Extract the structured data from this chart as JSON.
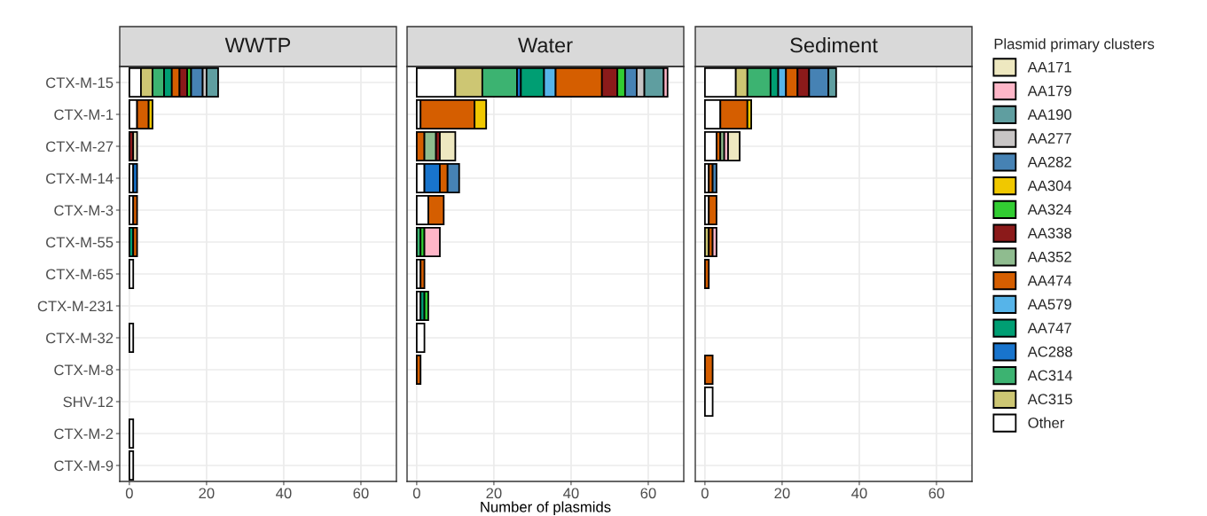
{
  "chart_data": [
    {
      "type": "bar",
      "orientation": "horizontal",
      "stacked": true,
      "title": "WWTP",
      "grid": true,
      "categories": [
        "CTX-M-15",
        "CTX-M-1",
        "CTX-M-27",
        "CTX-M-14",
        "CTX-M-3",
        "CTX-M-55",
        "CTX-M-65",
        "CTX-M-231",
        "CTX-M-32",
        "CTX-M-8",
        "SHV-12",
        "CTX-M-2",
        "CTX-M-9"
      ],
      "xlim": [
        -2.5,
        69.2
      ],
      "xticks": [
        0,
        20,
        40,
        60
      ],
      "series": [
        {
          "color": "#ffffff",
          "values": [
            3,
            2,
            null,
            1,
            1,
            null,
            1,
            null,
            1,
            null,
            null,
            1,
            1
          ]
        },
        {
          "color": "#cdc673",
          "values": [
            3,
            null,
            null,
            null,
            null,
            null,
            null,
            null,
            null,
            null,
            null,
            null,
            null
          ]
        },
        {
          "color": "#3cb371",
          "values": [
            3,
            null,
            null,
            null,
            null,
            null,
            null,
            null,
            null,
            null,
            null,
            null,
            null
          ]
        },
        {
          "color": "#1874cd",
          "values": [
            null,
            null,
            null,
            1,
            null,
            null,
            null,
            null,
            null,
            null,
            null,
            null,
            null
          ]
        },
        {
          "color": "#009e73",
          "values": [
            2,
            null,
            null,
            null,
            null,
            1,
            null,
            null,
            null,
            null,
            null,
            null,
            null
          ]
        },
        {
          "color": "#56b4e9",
          "values": [
            null,
            null,
            null,
            null,
            null,
            null,
            null,
            null,
            null,
            null,
            null,
            null,
            null
          ]
        },
        {
          "color": "#d55e00",
          "values": [
            2,
            3,
            null,
            null,
            1,
            1,
            null,
            null,
            null,
            null,
            null,
            null,
            null
          ]
        },
        {
          "color": "#8fbc8f",
          "values": [
            null,
            null,
            null,
            null,
            null,
            null,
            null,
            null,
            null,
            null,
            null,
            null,
            null
          ]
        },
        {
          "color": "#8b1a1a",
          "values": [
            2,
            null,
            1,
            null,
            null,
            null,
            null,
            null,
            null,
            null,
            null,
            null,
            null
          ]
        },
        {
          "color": "#32cd32",
          "values": [
            1,
            null,
            null,
            null,
            null,
            null,
            null,
            null,
            null,
            null,
            null,
            null,
            null
          ]
        },
        {
          "color": "#f0c800",
          "values": [
            null,
            1,
            null,
            null,
            null,
            null,
            null,
            null,
            null,
            null,
            null,
            null,
            null
          ]
        },
        {
          "color": "#4682b4",
          "values": [
            3,
            null,
            null,
            null,
            null,
            null,
            null,
            null,
            null,
            null,
            null,
            null,
            null
          ]
        },
        {
          "color": "#c8c5c5",
          "values": [
            1,
            null,
            null,
            null,
            null,
            null,
            null,
            null,
            null,
            null,
            null,
            null,
            null
          ]
        },
        {
          "color": "#5f9ea0",
          "values": [
            3,
            null,
            null,
            null,
            null,
            null,
            null,
            null,
            null,
            null,
            null,
            null,
            null
          ]
        },
        {
          "color": "#ffb6c8",
          "values": [
            null,
            null,
            null,
            null,
            null,
            null,
            null,
            null,
            null,
            null,
            null,
            null,
            null
          ]
        },
        {
          "color": "#eee8c0",
          "values": [
            null,
            null,
            1,
            null,
            null,
            null,
            null,
            null,
            null,
            null,
            null,
            null,
            null
          ]
        }
      ]
    },
    {
      "type": "bar",
      "orientation": "horizontal",
      "stacked": true,
      "title": "Water",
      "xlabel": "Number of plasmids",
      "grid": true,
      "tick_labels": "x",
      "categories": [
        null,
        null,
        null,
        null,
        null,
        null,
        null,
        null,
        null,
        null,
        null,
        null,
        null
      ],
      "xlim": [
        -2.5,
        69.2
      ],
      "xticks": [
        0,
        20,
        40,
        60
      ],
      "series": [
        {
          "color": "#ffffff",
          "values": [
            10,
            1,
            null,
            2,
            3,
            null,
            1,
            1,
            2,
            null,
            null,
            null,
            null
          ]
        },
        {
          "color": "#cdc673",
          "values": [
            7,
            null,
            null,
            null,
            null,
            null,
            null,
            null,
            null,
            null,
            null,
            null,
            null
          ]
        },
        {
          "color": "#3cb371",
          "values": [
            9,
            null,
            null,
            null,
            null,
            1,
            null,
            null,
            null,
            null,
            null,
            null,
            null
          ]
        },
        {
          "color": "#1874cd",
          "values": [
            1,
            null,
            null,
            4,
            null,
            null,
            null,
            null,
            null,
            null,
            null,
            null,
            null
          ]
        },
        {
          "color": "#009e73",
          "values": [
            6,
            null,
            null,
            null,
            null,
            null,
            null,
            1,
            null,
            null,
            null,
            null,
            null
          ]
        },
        {
          "color": "#56b4e9",
          "values": [
            3,
            null,
            null,
            null,
            null,
            null,
            null,
            null,
            null,
            null,
            null,
            null,
            null
          ]
        },
        {
          "color": "#d55e00",
          "values": [
            12,
            14,
            2,
            2,
            4,
            null,
            1,
            null,
            null,
            1,
            null,
            null,
            null
          ]
        },
        {
          "color": "#8fbc8f",
          "values": [
            null,
            null,
            3,
            null,
            null,
            null,
            null,
            null,
            null,
            null,
            null,
            null,
            null
          ]
        },
        {
          "color": "#8b1a1a",
          "values": [
            4,
            null,
            1,
            null,
            null,
            null,
            null,
            null,
            null,
            null,
            null,
            null,
            null
          ]
        },
        {
          "color": "#32cd32",
          "values": [
            2,
            null,
            null,
            null,
            null,
            1,
            null,
            1,
            null,
            null,
            null,
            null,
            null
          ]
        },
        {
          "color": "#f0c800",
          "values": [
            null,
            3,
            null,
            null,
            null,
            null,
            null,
            null,
            null,
            null,
            null,
            null,
            null
          ]
        },
        {
          "color": "#4682b4",
          "values": [
            3,
            null,
            null,
            3,
            null,
            null,
            null,
            null,
            null,
            null,
            null,
            null,
            null
          ]
        },
        {
          "color": "#c8c5c5",
          "values": [
            2,
            null,
            null,
            null,
            null,
            null,
            null,
            null,
            null,
            null,
            null,
            null,
            null
          ]
        },
        {
          "color": "#5f9ea0",
          "values": [
            5,
            null,
            null,
            null,
            null,
            null,
            null,
            null,
            null,
            null,
            null,
            null,
            null
          ]
        },
        {
          "color": "#ffb6c8",
          "values": [
            1,
            null,
            null,
            null,
            null,
            4,
            null,
            null,
            null,
            null,
            null,
            null,
            null
          ]
        },
        {
          "color": "#eee8c0",
          "values": [
            null,
            null,
            4,
            null,
            null,
            null,
            null,
            null,
            null,
            null,
            null,
            null,
            null
          ]
        }
      ]
    },
    {
      "type": "bar",
      "orientation": "horizontal",
      "stacked": true,
      "title": "Sediment",
      "grid": true,
      "tick_labels": "x",
      "legend": "right",
      "legend_title": "Plasmid primary clusters",
      "categories": [
        null,
        null,
        null,
        null,
        null,
        null,
        null,
        null,
        null,
        null,
        null,
        null,
        null
      ],
      "xlim": [
        -2.5,
        69.2
      ],
      "xticks": [
        0,
        20,
        40,
        60
      ],
      "series": [
        {
          "name": "Other",
          "color": "#ffffff",
          "values": [
            8,
            4,
            3,
            1,
            1,
            null,
            null,
            null,
            null,
            null,
            2,
            null,
            null
          ]
        },
        {
          "name": "AC315",
          "color": "#cdc673",
          "values": [
            3,
            null,
            null,
            null,
            null,
            1,
            null,
            null,
            null,
            null,
            null,
            null,
            null
          ]
        },
        {
          "name": "AC314",
          "color": "#3cb371",
          "values": [
            6,
            null,
            null,
            null,
            null,
            null,
            null,
            null,
            null,
            null,
            null,
            null,
            null
          ]
        },
        {
          "name": "AC288",
          "color": "#1874cd",
          "values": [
            null,
            null,
            null,
            null,
            null,
            null,
            null,
            null,
            null,
            null,
            null,
            null,
            null
          ]
        },
        {
          "name": "AA747",
          "color": "#009e73",
          "values": [
            2,
            null,
            null,
            null,
            null,
            null,
            null,
            null,
            null,
            null,
            null,
            null,
            null
          ]
        },
        {
          "name": "AA579",
          "color": "#56b4e9",
          "values": [
            2,
            null,
            null,
            null,
            null,
            null,
            null,
            null,
            null,
            null,
            null,
            null,
            null
          ]
        },
        {
          "name": "AA474",
          "color": "#d55e00",
          "values": [
            3,
            7,
            1,
            1,
            2,
            1,
            1,
            null,
            null,
            2,
            null,
            null,
            null
          ]
        },
        {
          "name": "AA352",
          "color": "#8fbc8f",
          "values": [
            null,
            null,
            1,
            null,
            null,
            null,
            null,
            null,
            null,
            null,
            null,
            null,
            null
          ]
        },
        {
          "name": "AA338",
          "color": "#8b1a1a",
          "values": [
            3,
            null,
            null,
            null,
            null,
            null,
            null,
            null,
            null,
            null,
            null,
            null,
            null
          ]
        },
        {
          "name": "AA324",
          "color": "#32cd32",
          "values": [
            null,
            null,
            null,
            null,
            null,
            null,
            null,
            null,
            null,
            null,
            null,
            null,
            null
          ]
        },
        {
          "name": "AA304",
          "color": "#f0c800",
          "values": [
            null,
            1,
            null,
            null,
            null,
            null,
            null,
            null,
            null,
            null,
            null,
            null,
            null
          ]
        },
        {
          "name": "AA282",
          "color": "#4682b4",
          "values": [
            5,
            null,
            null,
            1,
            null,
            null,
            null,
            null,
            null,
            null,
            null,
            null,
            null
          ]
        },
        {
          "name": "AA277",
          "color": "#c8c5c5",
          "values": [
            null,
            null,
            null,
            null,
            null,
            null,
            null,
            null,
            null,
            null,
            null,
            null,
            null
          ]
        },
        {
          "name": "AA190",
          "color": "#5f9ea0",
          "values": [
            2,
            null,
            null,
            null,
            null,
            null,
            null,
            null,
            null,
            null,
            null,
            null,
            null
          ]
        },
        {
          "name": "AA179",
          "color": "#ffb6c8",
          "values": [
            null,
            null,
            1,
            null,
            null,
            1,
            null,
            null,
            null,
            null,
            null,
            null,
            null
          ]
        },
        {
          "name": "AA171",
          "color": "#eee8c0",
          "values": [
            null,
            null,
            3,
            null,
            null,
            null,
            null,
            null,
            null,
            null,
            null,
            null,
            null
          ]
        }
      ]
    }
  ]
}
